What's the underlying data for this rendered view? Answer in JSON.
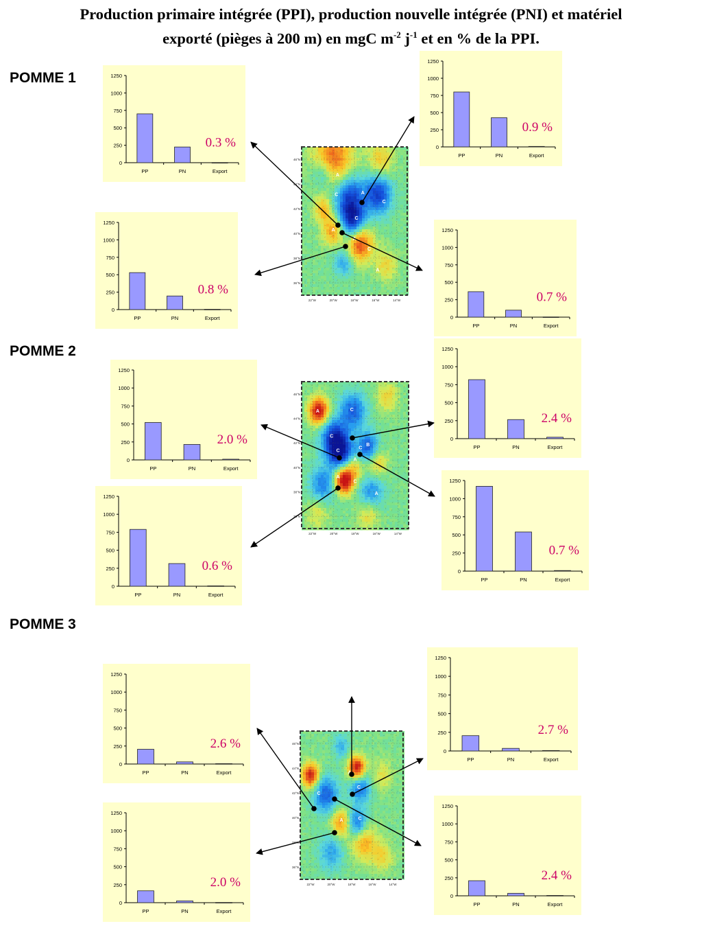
{
  "title": {
    "line1": "Production primaire intégrée (PPI), production nouvelle intégrée (PNI) et matériel",
    "line2": "exporté (pièges à 200 m) en mgC m-2 j-1 et en % de la PPI.",
    "line2_parts": [
      "exporté (pièges à 200 m) en mgC m",
      "-2",
      " j",
      "-1",
      " et en % de la PPI."
    ]
  },
  "sections": [
    "POMME 1",
    "POMME 2",
    "POMME 3"
  ],
  "colors": {
    "bar_fill": "#9999ff",
    "panel_bg": "#ffffcc",
    "percent_text": "#cc0066",
    "map_border": "#333333"
  },
  "map_ticks": {
    "lat": [
      "46°N",
      "44°N",
      "42°N",
      "40°N",
      "38°N",
      "36°N"
    ],
    "lon": [
      "22°W",
      "20°W",
      "18°W",
      "16°W",
      "14°W"
    ]
  },
  "map_labels": {
    "pomme1": [
      "A",
      "C",
      "A",
      "C",
      "C",
      "A",
      "A",
      "C",
      "A"
    ],
    "pomme2": [
      "A",
      "C",
      "C",
      "C",
      "C",
      "B",
      "A",
      "A",
      "C",
      "A"
    ],
    "pomme3": [
      "A",
      "C",
      "C",
      "A",
      "C"
    ]
  },
  "chart_data": [
    {
      "type": "bar",
      "group": "POMME 1",
      "categories": [
        "PP",
        "PN",
        "Export"
      ],
      "values": [
        800,
        425,
        7
      ],
      "ylim": [
        0,
        1250
      ],
      "yticks": [
        "1250",
        "1000",
        "750",
        "500",
        "250",
        "0"
      ],
      "annotation": "0.9 %"
    },
    {
      "type": "bar",
      "group": "POMME 1",
      "categories": [
        "PP",
        "PN",
        "Export"
      ],
      "values": [
        700,
        225,
        2
      ],
      "ylim": [
        0,
        1250
      ],
      "yticks": [
        "1250",
        "1000",
        "750",
        "500",
        "250",
        "0"
      ],
      "annotation": "0.3 %"
    },
    {
      "type": "bar",
      "group": "POMME 1",
      "categories": [
        "PP",
        "PN",
        "Export"
      ],
      "values": [
        530,
        195,
        4
      ],
      "ylim": [
        0,
        1250
      ],
      "yticks": [
        "1250",
        "1000",
        "750",
        "500",
        "250",
        "0"
      ],
      "annotation": "0.8 %"
    },
    {
      "type": "bar",
      "group": "POMME 1",
      "categories": [
        "PP",
        "PN",
        "Export"
      ],
      "values": [
        365,
        100,
        3
      ],
      "ylim": [
        0,
        1250
      ],
      "yticks": [
        "1250",
        "1000",
        "750",
        "500",
        "250",
        "0"
      ],
      "annotation": "0.7 %"
    },
    {
      "type": "bar",
      "group": "POMME 2",
      "categories": [
        "PP",
        "PN",
        "Export"
      ],
      "values": [
        820,
        265,
        20
      ],
      "ylim": [
        0,
        1250
      ],
      "yticks": [
        "1250",
        "1000",
        "750",
        "500",
        "250",
        "0"
      ],
      "annotation": "2.4 %"
    },
    {
      "type": "bar",
      "group": "POMME 2",
      "categories": [
        "PP",
        "PN",
        "Export"
      ],
      "values": [
        520,
        215,
        10
      ],
      "ylim": [
        0,
        1250
      ],
      "yticks": [
        "1250",
        "1000",
        "750",
        "500",
        "250",
        "0"
      ],
      "annotation": "2.0 %"
    },
    {
      "type": "bar",
      "group": "POMME 2",
      "categories": [
        "PP",
        "PN",
        "Export"
      ],
      "values": [
        1170,
        540,
        8
      ],
      "ylim": [
        0,
        1250
      ],
      "yticks": [
        "1250",
        "1000",
        "750",
        "500",
        "250",
        "0"
      ],
      "annotation": "0.7 %"
    },
    {
      "type": "bar",
      "group": "POMME 2",
      "categories": [
        "PP",
        "PN",
        "Export"
      ],
      "values": [
        790,
        315,
        5
      ],
      "ylim": [
        0,
        1250
      ],
      "yticks": [
        "1250",
        "1000",
        "750",
        "500",
        "250",
        "0"
      ],
      "annotation": "0.6 %"
    },
    {
      "type": "bar",
      "group": "POMME 3",
      "categories": [
        "PP",
        "PN",
        "Export"
      ],
      "values": [
        205,
        35,
        6
      ],
      "ylim": [
        0,
        1250
      ],
      "yticks": [
        "1250",
        "1000",
        "750",
        "500",
        "250",
        "0"
      ],
      "annotation": "2.7 %"
    },
    {
      "type": "bar",
      "group": "POMME 3",
      "categories": [
        "PP",
        "PN",
        "Export"
      ],
      "values": [
        205,
        30,
        5
      ],
      "ylim": [
        0,
        1250
      ],
      "yticks": [
        "1250",
        "1000",
        "750",
        "500",
        "250",
        "0"
      ],
      "annotation": "2.6 %"
    },
    {
      "type": "bar",
      "group": "POMME 3",
      "categories": [
        "PP",
        "PN",
        "Export"
      ],
      "values": [
        165,
        25,
        3
      ],
      "ylim": [
        0,
        1250
      ],
      "yticks": [
        "1250",
        "1000",
        "750",
        "500",
        "250",
        "0"
      ],
      "annotation": "2.0 %"
    },
    {
      "type": "bar",
      "group": "POMME 3",
      "categories": [
        "PP",
        "PN",
        "Export"
      ],
      "values": [
        210,
        35,
        5
      ],
      "ylim": [
        0,
        1250
      ],
      "yticks": [
        "1250",
        "1000",
        "750",
        "500",
        "250",
        "0"
      ],
      "annotation": "2.4 %"
    }
  ]
}
